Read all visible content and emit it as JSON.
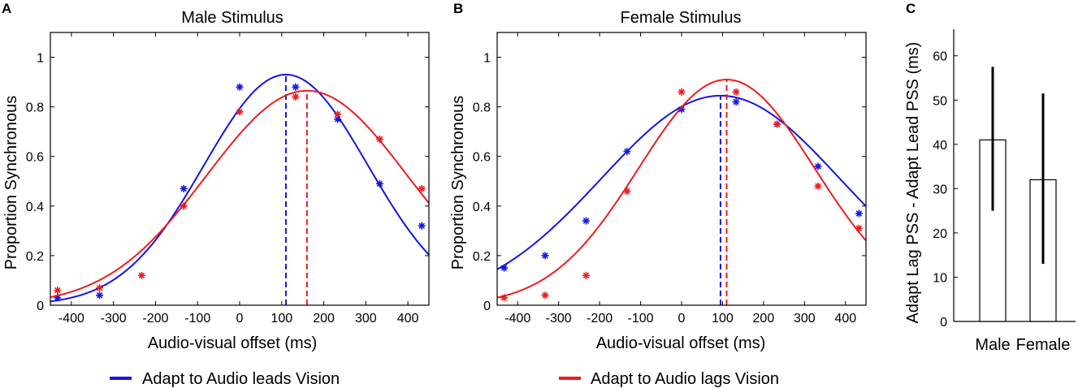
{
  "legend": [
    {
      "label": "Adapt to Audio leads Vision",
      "color": "#1515e6"
    },
    {
      "label": "Adapt to Audio lags Vision",
      "color": "#ee1c1c"
    }
  ],
  "chart_data": [
    {
      "panel": "A",
      "type": "line",
      "title": "Male Stimulus",
      "xlabel": "Audio-visual offset (ms)",
      "ylabel": "Proportion Synchronous",
      "xlim": [
        -450,
        450
      ],
      "ylim": [
        0,
        1.1
      ],
      "xticks": [
        "-400",
        "-300",
        "-200",
        "-100",
        "0",
        "100",
        "200",
        "300",
        "400"
      ],
      "yticks": [
        "0",
        "0.2",
        "0.4",
        "0.6",
        "0.8",
        "1"
      ],
      "x": [
        -433,
        -333,
        -233,
        -133,
        0,
        133,
        233,
        333,
        433
      ],
      "series": [
        {
          "name": "Adapt to Audio leads Vision",
          "color": "#1515e6",
          "points": [
            0.03,
            0.04,
            null,
            0.47,
            0.88,
            0.88,
            0.75,
            0.49,
            0.32
          ],
          "fit": {
            "peak": 0.93,
            "mu": 110,
            "sigma": 195
          },
          "pss": 110
        },
        {
          "name": "Adapt to Audio lags Vision",
          "color": "#ee1c1c",
          "points": [
            0.06,
            0.07,
            0.12,
            0.4,
            0.78,
            0.84,
            0.77,
            0.67,
            0.47
          ],
          "fit": {
            "peak": 0.865,
            "mu": 160,
            "sigma": 238
          },
          "pss": 160
        }
      ]
    },
    {
      "panel": "B",
      "type": "line",
      "title": "Female Stimulus",
      "xlabel": "Audio-visual offset (ms)",
      "ylabel": "Proportion Synchronous",
      "xlim": [
        -450,
        450
      ],
      "ylim": [
        0,
        1.1
      ],
      "xticks": [
        "-400",
        "-300",
        "-200",
        "-100",
        "0",
        "100",
        "200",
        "300",
        "400"
      ],
      "yticks": [
        "0",
        "0.2",
        "0.4",
        "0.6",
        "0.8",
        "1"
      ],
      "x": [
        -433,
        -333,
        -233,
        -133,
        0,
        133,
        233,
        333,
        433
      ],
      "series": [
        {
          "name": "Adapt to Audio leads Vision",
          "color": "#1515e6",
          "points": [
            0.15,
            0.2,
            0.34,
            0.62,
            0.79,
            0.82,
            0.73,
            0.56,
            0.37
          ],
          "fit": {
            "peak": 0.845,
            "mu": 95,
            "sigma": 290
          },
          "pss": 95
        },
        {
          "name": "Adapt to Audio lags Vision",
          "color": "#ee1c1c",
          "points": [
            0.03,
            0.04,
            0.12,
            0.46,
            0.86,
            0.86,
            0.73,
            0.48,
            0.31
          ],
          "fit": {
            "peak": 0.91,
            "mu": 110,
            "sigma": 215
          },
          "pss": 110
        }
      ]
    },
    {
      "panel": "C",
      "type": "bar",
      "title": "",
      "xlabel": "",
      "ylabel": "Adapt Lag PSS - Adapt Lead PSS (ms)",
      "ylim": [
        0,
        66
      ],
      "yticks": [
        "0",
        "10",
        "20",
        "30",
        "40",
        "50",
        "60"
      ],
      "categories": [
        "Male",
        "Female"
      ],
      "values": [
        41,
        32
      ],
      "error_low": [
        25,
        13
      ],
      "error_high": [
        57.5,
        51.5
      ]
    }
  ]
}
